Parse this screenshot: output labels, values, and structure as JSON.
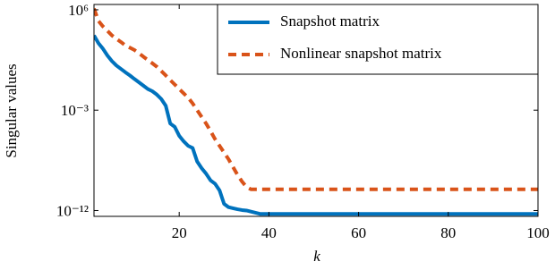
{
  "chart_data": {
    "type": "line",
    "x_label": "k",
    "y_label": "Singular values",
    "log_y": true,
    "legend": "top-right",
    "xlim": [
      1,
      100
    ],
    "xticks": [
      20,
      40,
      60,
      80,
      100
    ],
    "ylim": [
      3e-13,
      3000000.0
    ],
    "yticks": [
      {
        "value": 1e-12,
        "label": "10⁻¹²"
      },
      {
        "value": 0.001,
        "label": "10⁻³"
      },
      {
        "value": 1000000.0,
        "label": "10⁶"
      }
    ],
    "x": [
      1,
      2,
      3,
      4,
      5,
      6,
      7,
      8,
      9,
      10,
      11,
      12,
      13,
      14,
      15,
      16,
      17,
      18,
      19,
      20,
      21,
      22,
      23,
      24,
      25,
      26,
      27,
      28,
      29,
      30,
      31,
      32,
      33,
      34,
      35,
      36,
      37,
      38,
      39,
      40,
      41,
      42,
      43,
      44,
      45,
      46,
      47,
      48,
      49,
      50,
      51,
      52,
      53,
      54,
      55,
      56,
      57,
      58,
      59,
      60,
      61,
      62,
      63,
      64,
      65,
      66,
      67,
      68,
      69,
      70,
      71,
      72,
      73,
      74,
      75,
      76,
      77,
      78,
      79,
      80,
      81,
      82,
      83,
      84,
      85,
      86,
      87,
      88,
      89,
      90,
      91,
      92,
      93,
      94,
      95,
      96,
      97,
      98,
      99,
      100
    ],
    "series": [
      {
        "name": "Snapshot matrix",
        "color": "#0072bd",
        "dash": false,
        "values": [
          5000,
          1000,
          320,
          79,
          25,
          10,
          5,
          2.5,
          1.3,
          0.63,
          0.32,
          0.16,
          0.079,
          0.05,
          0.025,
          0.01,
          0.0025,
          6.3e-05,
          3.2e-05,
          5e-06,
          1.6e-06,
          6.3e-07,
          4e-07,
          2.5e-08,
          6.3e-09,
          2e-09,
          5e-10,
          2.5e-10,
          6.3e-11,
          4e-12,
          2e-12,
          1.6e-12,
          1.3e-12,
          1.1e-12,
          1e-12,
          8e-13,
          6.3e-13,
          5e-13,
          5e-13,
          5e-13,
          5e-13,
          5e-13,
          5e-13,
          5e-13,
          5e-13,
          5e-13,
          5e-13,
          5e-13,
          5e-13,
          5e-13,
          5e-13,
          5e-13,
          5e-13,
          5e-13,
          5e-13,
          5e-13,
          5e-13,
          5e-13,
          5e-13,
          5e-13,
          5e-13,
          5e-13,
          5e-13,
          5e-13,
          5e-13,
          5e-13,
          5e-13,
          5e-13,
          5e-13,
          5e-13,
          5e-13,
          5e-13,
          5e-13,
          5e-13,
          5e-13,
          5e-13,
          5e-13,
          5e-13,
          5e-13,
          5e-13,
          5e-13,
          5e-13,
          5e-13,
          5e-13,
          5e-13,
          5e-13,
          5e-13,
          5e-13,
          5e-13,
          5e-13,
          5e-13,
          5e-13,
          5e-13,
          5e-13,
          5e-13,
          5e-13,
          5e-13,
          5e-13,
          5e-13,
          5e-13
        ]
      },
      {
        "name": "Nonlinear snapshot matrix",
        "color": "#d95319",
        "dash": true,
        "values": [
          1300000.0,
          100000.0,
          32000.0,
          13000.0,
          5000,
          2500,
          1300,
          630,
          400,
          250,
          130,
          63,
          32,
          16,
          7.9,
          3.2,
          1.3,
          0.5,
          0.2,
          0.079,
          0.032,
          0.013,
          0.004,
          0.001,
          0.00025,
          6.3e-05,
          1.3e-05,
          2.5e-06,
          6.3e-07,
          1.6e-07,
          4e-08,
          7.9e-09,
          1.6e-09,
          4e-10,
          1.3e-10,
          8e-11,
          8e-11,
          8e-11,
          8e-11,
          8e-11,
          8e-11,
          8e-11,
          8e-11,
          8e-11,
          8e-11,
          8e-11,
          8e-11,
          8e-11,
          8e-11,
          8e-11,
          8e-11,
          8e-11,
          8e-11,
          8e-11,
          8e-11,
          8e-11,
          8e-11,
          8e-11,
          8e-11,
          8e-11,
          8e-11,
          8e-11,
          8e-11,
          8e-11,
          8e-11,
          8e-11,
          8e-11,
          8e-11,
          8e-11,
          8e-11,
          8e-11,
          8e-11,
          8e-11,
          8e-11,
          8e-11,
          8e-11,
          8e-11,
          8e-11,
          8e-11,
          8e-11,
          8e-11,
          8e-11,
          8e-11,
          8e-11,
          8e-11,
          8e-11,
          8e-11,
          8e-11,
          8e-11,
          8e-11,
          8e-11,
          8e-11,
          8e-11,
          8e-11,
          8e-11,
          8e-11,
          8e-11,
          8e-11,
          8e-11,
          8e-11
        ]
      }
    ]
  }
}
